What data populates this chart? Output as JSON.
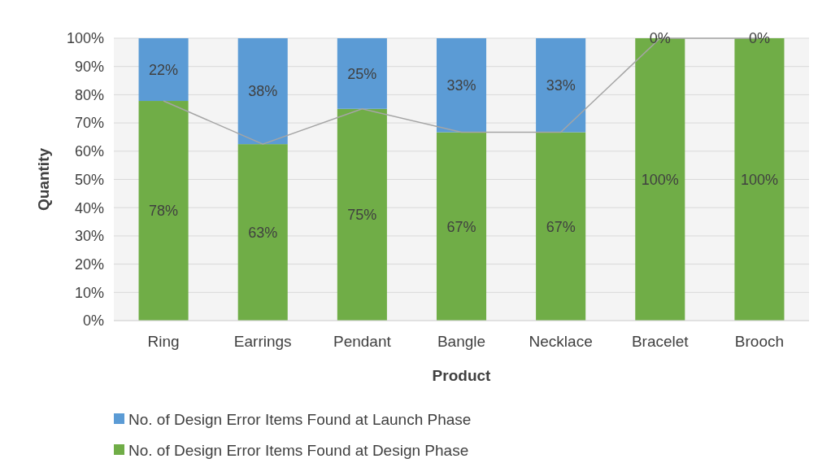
{
  "chart_data": {
    "type": "bar",
    "stacked": true,
    "xlabel": "Product",
    "ylabel": "Quantity",
    "categories": [
      "Ring",
      "Earrings",
      "Pendant",
      "Bangle",
      "Necklace",
      "Bracelet",
      "Brooch"
    ],
    "series": [
      {
        "name": "No. of Design Error Items Found at Design Phase",
        "color": "#70ad47",
        "values": [
          77.8,
          62.5,
          75,
          66.7,
          66.7,
          100,
          100
        ],
        "value_labels": [
          "78%",
          "63%",
          "75%",
          "67%",
          "67%",
          "100%",
          "100%"
        ]
      },
      {
        "name": "No. of Design Error Items Found at Launch Phase",
        "color": "#5b9bd5",
        "values": [
          22.2,
          37.5,
          25,
          33.3,
          33.3,
          0,
          0
        ],
        "value_labels": [
          "22%",
          "38%",
          "25%",
          "33%",
          "33%",
          "0%",
          "0%"
        ]
      },
      {
        "type": "line",
        "color": "#a5a5a5",
        "values": [
          77.8,
          62.5,
          75,
          66.7,
          66.7,
          100,
          100
        ]
      }
    ],
    "ylim": [
      0,
      100
    ],
    "yticks": [
      {
        "value": 0,
        "label": "0%"
      },
      {
        "value": 10,
        "label": "10%"
      },
      {
        "value": 20,
        "label": "20%"
      },
      {
        "value": 30,
        "label": "30%"
      },
      {
        "value": 40,
        "label": "40%"
      },
      {
        "value": 50,
        "label": "50%"
      },
      {
        "value": 60,
        "label": "60%"
      },
      {
        "value": 70,
        "label": "70%"
      },
      {
        "value": 80,
        "label": "80%"
      },
      {
        "value": 90,
        "label": "90%"
      },
      {
        "value": 100,
        "label": "100%"
      }
    ],
    "grid": "y",
    "legend": "bottom"
  }
}
